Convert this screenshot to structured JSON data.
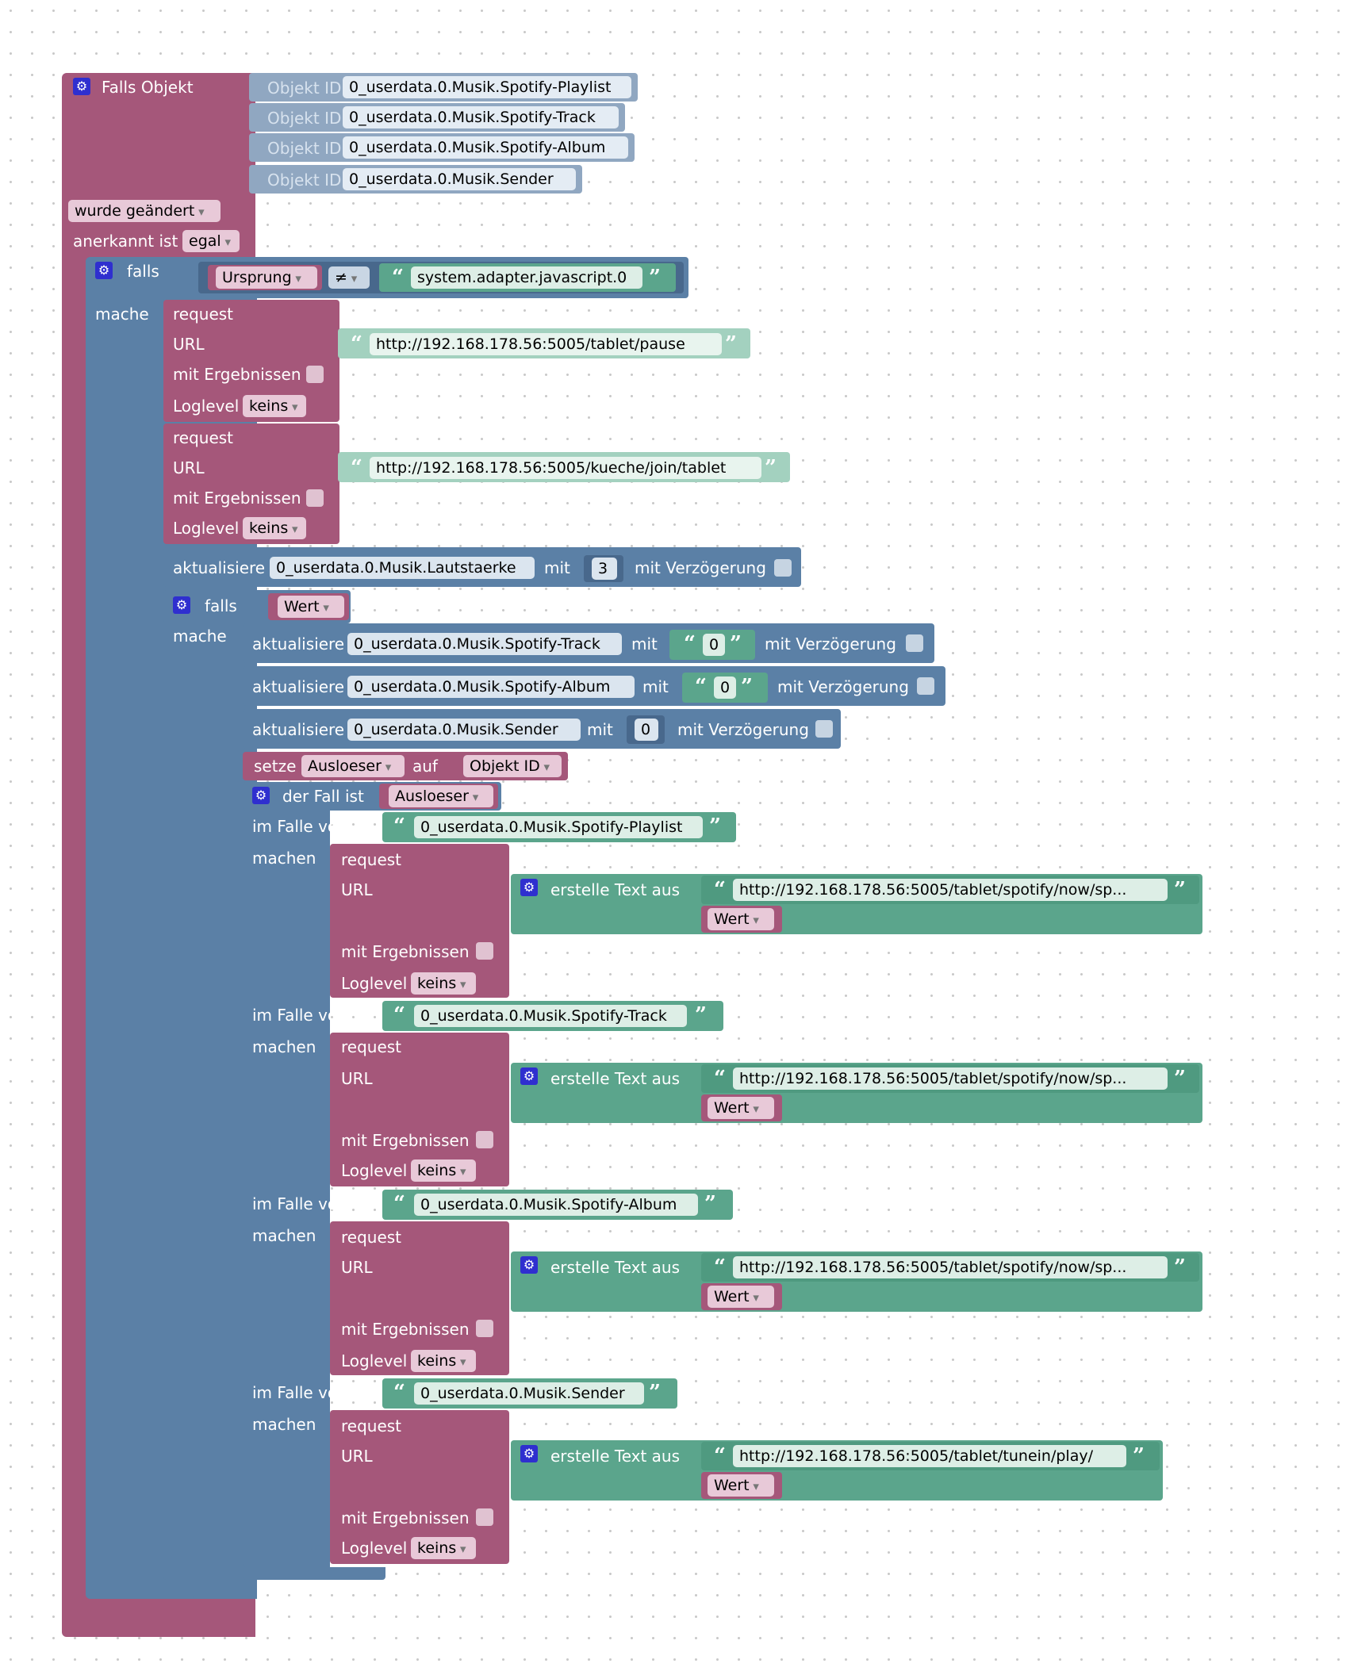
{
  "trigger": {
    "title": "Falls Objekt",
    "object_label": "Objekt ID",
    "object_ids": [
      "0_userdata.0.Musik.Spotify-Playlist",
      "0_userdata.0.Musik.Spotify-Track",
      "0_userdata.0.Musik.Spotify-Album",
      "0_userdata.0.Musik.Sender"
    ],
    "changed_mode": "wurde geändert",
    "ack_label": "anerkannt ist",
    "ack_value": "egal"
  },
  "outer_if": {
    "label": "falls",
    "do_label": "mache",
    "left_operand": "Ursprung",
    "operator": "≠",
    "right_value": "system.adapter.javascript.0"
  },
  "request1": {
    "label": "request",
    "url_label": "URL",
    "url": "http://192.168.178.56:5005/tablet/pause",
    "results_label": "mit Ergebnissen",
    "loglevel_label": "Loglevel",
    "loglevel": "keins"
  },
  "request2": {
    "label": "request",
    "url_label": "URL",
    "url": "http://192.168.178.56:5005/kueche/join/tablet",
    "results_label": "mit Ergebnissen",
    "loglevel_label": "Loglevel",
    "loglevel": "keins"
  },
  "update_volume": {
    "label": "aktualisiere",
    "object": "0_userdata.0.Musik.Lautstaerke",
    "with_label": "mit",
    "value": "3",
    "delay_label": "mit Verzögerung"
  },
  "inner_if": {
    "label": "falls",
    "do_label": "mache",
    "condition": "Wert"
  },
  "updates": [
    {
      "label": "aktualisiere",
      "object": "0_userdata.0.Musik.Spotify-Track",
      "with_label": "mit",
      "value": "0",
      "delay_label": "mit Verzögerung"
    },
    {
      "label": "aktualisiere",
      "object": "0_userdata.0.Musik.Spotify-Album",
      "with_label": "mit",
      "value": "0",
      "delay_label": "mit Verzögerung"
    },
    {
      "label": "aktualisiere",
      "object": "0_userdata.0.Musik.Sender",
      "with_label": "mit",
      "value": "0",
      "delay_label": "mit Verzögerung"
    }
  ],
  "set_var": {
    "label": "setze",
    "variable": "Ausloeser",
    "to_label": "auf",
    "value": "Objekt ID"
  },
  "switch": {
    "label": "der Fall ist",
    "variable": "Ausloeser"
  },
  "cases": [
    {
      "case_label": "im Falle von",
      "value": "0_userdata.0.Musik.Spotify-Playlist",
      "do_label": "machen",
      "req_label": "request",
      "url_label": "URL",
      "text_label": "erstelle Text aus",
      "url": "http://192.168.178.56:5005/tablet/spotify/now/sp...",
      "var": "Wert",
      "results_label": "mit Ergebnissen",
      "loglevel_label": "Loglevel",
      "loglevel": "keins"
    },
    {
      "case_label": "im Falle von",
      "value": "0_userdata.0.Musik.Spotify-Track",
      "do_label": "machen",
      "req_label": "request",
      "url_label": "URL",
      "text_label": "erstelle Text aus",
      "url": "http://192.168.178.56:5005/tablet/spotify/now/sp...",
      "var": "Wert",
      "results_label": "mit Ergebnissen",
      "loglevel_label": "Loglevel",
      "loglevel": "keins"
    },
    {
      "case_label": "im Falle von",
      "value": "0_userdata.0.Musik.Spotify-Album",
      "do_label": "machen",
      "req_label": "request",
      "url_label": "URL",
      "text_label": "erstelle Text aus",
      "url": "http://192.168.178.56:5005/tablet/spotify/now/sp...",
      "var": "Wert",
      "results_label": "mit Ergebnissen",
      "loglevel_label": "Loglevel",
      "loglevel": "keins"
    },
    {
      "case_label": "im Falle von",
      "value": "0_userdata.0.Musik.Sender",
      "do_label": "machen",
      "req_label": "request",
      "url_label": "URL",
      "text_label": "erstelle Text aus",
      "url": "http://192.168.178.56:5005/tablet/tunein/play/",
      "var": "Wert",
      "results_label": "mit Ergebnissen",
      "loglevel_label": "Loglevel",
      "loglevel": "keins"
    }
  ],
  "colors": {
    "event_block": "#a5577a",
    "logic_block": "#5b80a6",
    "text_block": "#5ba58c",
    "object_id_block": "#90a7c1"
  },
  "icons": {
    "gear": "gear-icon",
    "open_quote": "open-quote-icon",
    "close_quote": "close-quote-icon",
    "dropdown": "chevron-down-icon"
  }
}
